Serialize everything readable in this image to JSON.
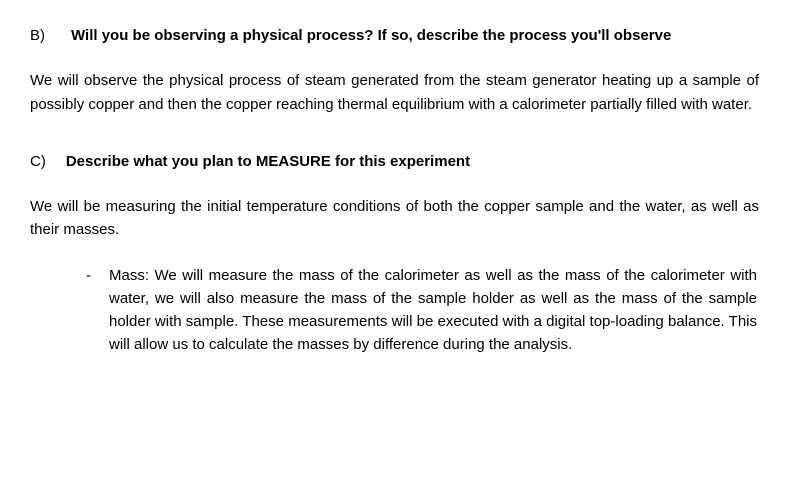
{
  "document": {
    "text_color": "#000000",
    "background_color": "#ffffff",
    "font_family": "Arial",
    "body_fontsize_pt": 11
  },
  "section_b": {
    "letter": "B)",
    "heading": "Will you be observing a physical process? If so, describe the process you'll observe",
    "body": "We will observe the physical process of steam generated from the steam generator heating up a sample of possibly copper and then the copper reaching thermal equilibrium with a calorimeter partially filled with water."
  },
  "section_c": {
    "letter": "C)",
    "heading": "Describe what you plan to MEASURE for this experiment",
    "body": "We will be measuring the initial temperature conditions of both the copper sample and the water, as well as their masses.",
    "bullets": [
      {
        "marker": "-",
        "text": "Mass: We will measure the mass of the calorimeter as well as the mass of the calorimeter with water, we will also measure the mass of the sample holder as well as the mass of the sample holder with sample. These measurements will be executed with a digital top-loading balance. This will allow us to calculate the masses by difference during the analysis."
      }
    ]
  }
}
